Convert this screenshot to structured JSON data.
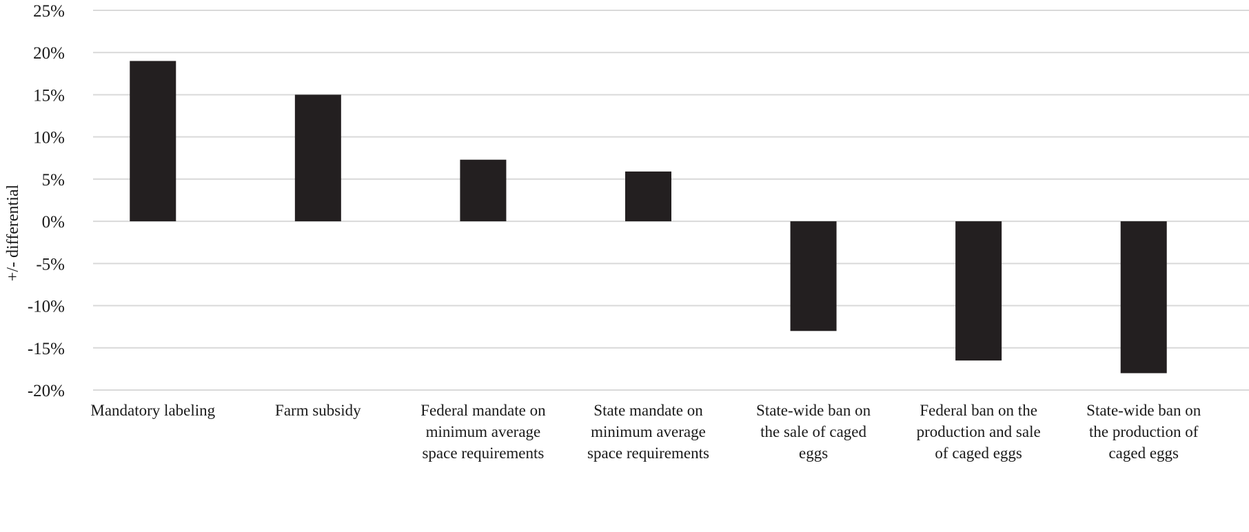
{
  "chart_data": {
    "type": "bar",
    "title": "",
    "xlabel": "",
    "ylabel": "+/- differential",
    "ylim": [
      -20,
      25
    ],
    "ytick_step": 5,
    "ytick_suffix": "%",
    "grid": true,
    "legend": "none",
    "bar_color": "#231f20",
    "grid_color": "#d9d9d9",
    "categories": [
      [
        "Mandatory labeling"
      ],
      [
        "Farm subsidy"
      ],
      [
        "Federal mandate on",
        "minimum average",
        "space requirements"
      ],
      [
        "State mandate on",
        "minimum average",
        "space requirements"
      ],
      [
        "State-wide ban on",
        "the sale of caged",
        "eggs"
      ],
      [
        "Federal ban on the",
        "production and sale",
        "of caged eggs"
      ],
      [
        "State-wide ban on",
        "the production of",
        "caged eggs"
      ]
    ],
    "values": [
      19,
      15,
      7.3,
      5.9,
      -13,
      -16.5,
      -18
    ]
  }
}
